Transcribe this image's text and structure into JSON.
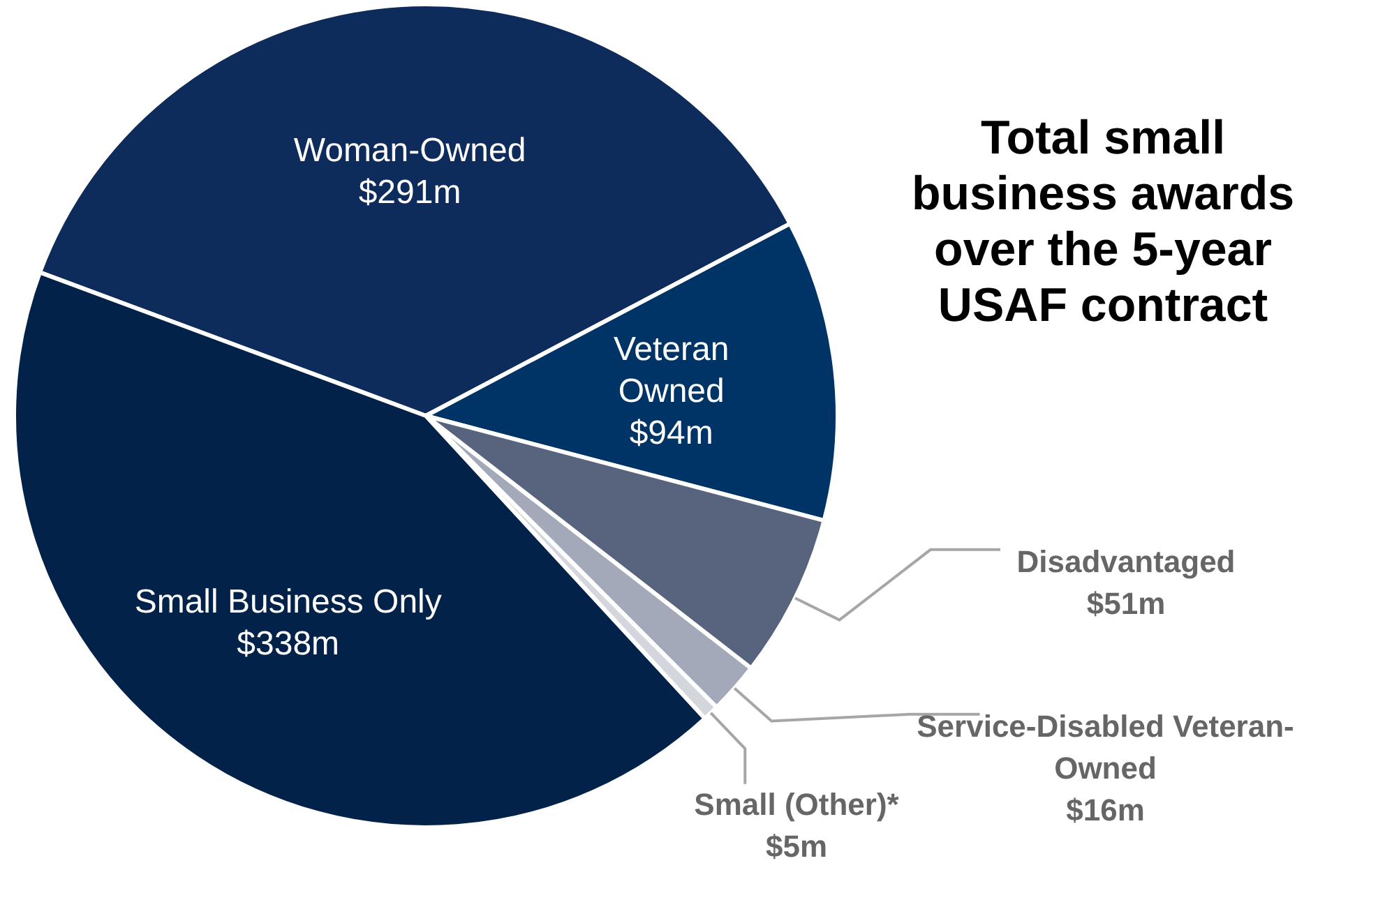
{
  "chart_data": {
    "type": "pie",
    "title": "Total small business awards over the 5-year USAF contract",
    "categories": [
      "Woman-Owned",
      "Veteran Owned",
      "Disadvantaged",
      "Service-Disabled Veteran-Owned",
      "Small (Other)*",
      "Small Business Only"
    ],
    "values": [
      291,
      94,
      51,
      16,
      5,
      338
    ],
    "value_labels": [
      "$291m",
      "$94m",
      "$51m",
      "$16m",
      "$5m",
      "$338m"
    ],
    "colors": [
      "#0d2b5b",
      "#003366",
      "#58637e",
      "#a3a9b8",
      "#d3d6dd",
      "#03224a"
    ]
  }
}
